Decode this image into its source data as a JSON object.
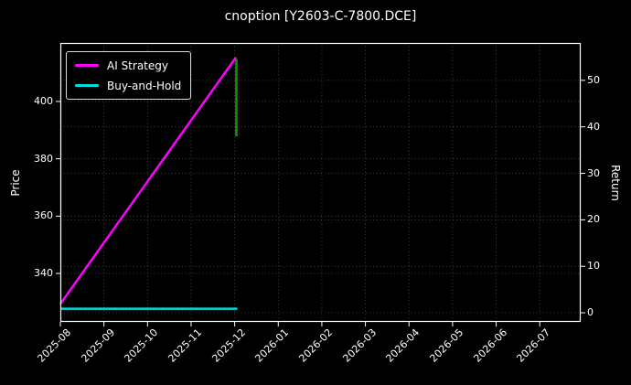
{
  "colors": {
    "background": "#000000",
    "text": "#ffffff",
    "grid": "#4f4f4f",
    "spine": "#ffffff",
    "ai_strategy": "#ff00ff",
    "buy_and_hold": "#00dcdc",
    "end_drop_green": "#0a9a0a",
    "end_marker_dark_red": "#4b0000"
  },
  "chart_data": {
    "type": "line",
    "title": "cnoption [Y2603-C-7800.DCE]",
    "xlabel": "",
    "ylabel_left": "Price",
    "ylabel_right": "Return",
    "x_tick_labels": [
      "2025-08",
      "2025-09",
      "2025-10",
      "2025-11",
      "2025-12",
      "2026-01",
      "2026-02",
      "2026-03",
      "2026-04",
      "2026-05",
      "2026-06",
      "2026-07"
    ],
    "x_range_months": [
      0,
      11.94
    ],
    "price_axis": {
      "ticks": [
        340,
        360,
        380,
        400
      ],
      "range": [
        323.1,
        420.4
      ]
    },
    "return_axis": {
      "ticks": [
        0,
        10,
        20,
        30,
        40,
        50
      ],
      "range": [
        -1.96,
        58.04
      ]
    },
    "grid": true,
    "legend": {
      "position": "upper left",
      "entries": [
        "AI Strategy",
        "Buy-and-Hold"
      ]
    },
    "series": [
      {
        "name": "AI Strategy",
        "color": "#ff00ff",
        "axis": "price",
        "width": 2.5,
        "points": [
          [
            0,
            329.4
          ],
          [
            4.03,
            415.4
          ]
        ]
      },
      {
        "name": "AI Strategy end drop",
        "color": "#0a9a0a",
        "axis": "price",
        "width": 2.5,
        "points": [
          [
            4.04,
            414.8
          ],
          [
            4.04,
            387.8
          ]
        ]
      },
      {
        "name": "End marker",
        "color": "#4b0000",
        "axis": "price",
        "width": 1.6,
        "points": [
          [
            4.1,
            413.0
          ],
          [
            4.1,
            387.8
          ]
        ]
      },
      {
        "name": "Buy-and-Hold",
        "color": "#00dcdc",
        "axis": "price",
        "width": 2.5,
        "points": [
          [
            0,
            327.7
          ],
          [
            4.06,
            327.7
          ]
        ]
      }
    ]
  }
}
